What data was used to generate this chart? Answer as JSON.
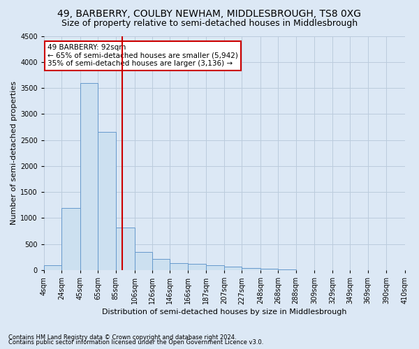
{
  "title": "49, BARBERRY, COULBY NEWHAM, MIDDLESBROUGH, TS8 0XG",
  "subtitle": "Size of property relative to semi-detached houses in Middlesbrough",
  "xlabel": "Distribution of semi-detached houses by size in Middlesbrough",
  "ylabel": "Number of semi-detached properties",
  "footer1": "Contains HM Land Registry data © Crown copyright and database right 2024.",
  "footer2": "Contains public sector information licensed under the Open Government Licence v3.0.",
  "annotation_title": "49 BARBERRY: 92sqm",
  "annotation_line1": "← 65% of semi-detached houses are smaller (5,942)",
  "annotation_line2": "35% of semi-detached houses are larger (3,136) →",
  "bar_left_edges": [
    4,
    24,
    45,
    65,
    85,
    106,
    126,
    146,
    166,
    187,
    207,
    227,
    248,
    268,
    288,
    309,
    329,
    349,
    369,
    390
  ],
  "bar_heights": [
    100,
    1200,
    3600,
    2650,
    820,
    350,
    220,
    130,
    120,
    100,
    70,
    45,
    25,
    10,
    5,
    2,
    1,
    1,
    0,
    0
  ],
  "bar_color": "#cce0f0",
  "bar_edge_color": "#6699cc",
  "vline_color": "#cc0000",
  "vline_x": 92,
  "ylim": [
    0,
    4500
  ],
  "yticks": [
    0,
    500,
    1000,
    1500,
    2000,
    2500,
    3000,
    3500,
    4000,
    4500
  ],
  "xtick_labels": [
    "4sqm",
    "24sqm",
    "45sqm",
    "65sqm",
    "85sqm",
    "106sqm",
    "126sqm",
    "146sqm",
    "166sqm",
    "187sqm",
    "207sqm",
    "227sqm",
    "248sqm",
    "268sqm",
    "288sqm",
    "309sqm",
    "329sqm",
    "349sqm",
    "369sqm",
    "390sqm",
    "410sqm"
  ],
  "grid_color": "#bbccdd",
  "bg_color": "#dce8f5",
  "title_fontsize": 10,
  "subtitle_fontsize": 9,
  "axis_fontsize": 8,
  "tick_fontsize": 7,
  "footer_fontsize": 6,
  "annotation_box_facecolor": "#ffffff",
  "annotation_box_edgecolor": "#cc0000",
  "annotation_fontsize": 7.5
}
